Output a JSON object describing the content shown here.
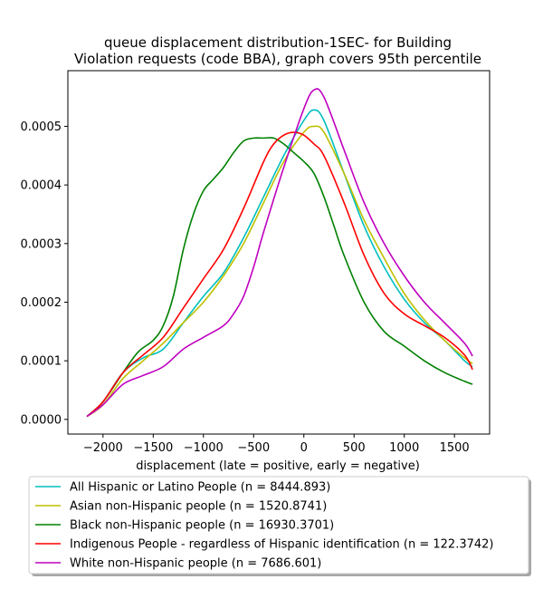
{
  "chart_data": {
    "type": "line",
    "title": [
      "queue displacement distribution-1SEC-  for Building",
      "Violation  requests (code BBA), graph covers 95th percentile"
    ],
    "xlabel": "displacement (late = positive, early = negative)",
    "ylabel": "",
    "xlim": [
      -2350,
      1850
    ],
    "ylim": [
      -2.5e-05,
      0.000595
    ],
    "xticks": [
      -2000,
      -1500,
      -1000,
      -500,
      0,
      500,
      1000,
      1500
    ],
    "xtick_labels": [
      "−2000",
      "−1500",
      "−1000",
      "−500",
      "0",
      "500",
      "1000",
      "1500"
    ],
    "yticks": [
      0.0,
      0.0001,
      0.0002,
      0.0003,
      0.0004,
      0.0005
    ],
    "ytick_labels": [
      "0.0000",
      "0.0001",
      "0.0002",
      "0.0003",
      "0.0004",
      "0.0005"
    ],
    "legend_position": "below plot",
    "series": [
      {
        "name": "All Hispanic or Latino People (n = 8444.893)",
        "color": "#00bfbf",
        "x": [
          -2160,
          -2000,
          -1800,
          -1600,
          -1400,
          -1200,
          -1000,
          -800,
          -600,
          -400,
          -200,
          0,
          100,
          200,
          400,
          600,
          800,
          1000,
          1200,
          1400,
          1600,
          1680
        ],
        "y": [
          5e-06,
          3e-05,
          8e-05,
          0.000105,
          0.00012,
          0.000165,
          0.00021,
          0.00025,
          0.00031,
          0.00038,
          0.00045,
          0.00051,
          0.000528,
          0.00051,
          0.00042,
          0.00033,
          0.00026,
          0.000205,
          0.000165,
          0.000135,
          0.0001,
          9e-05
        ]
      },
      {
        "name": "Asian non-Hispanic people (n = 1520.8741)",
        "color": "#bfbf00",
        "x": [
          -2160,
          -2000,
          -1800,
          -1600,
          -1400,
          -1200,
          -1000,
          -800,
          -600,
          -400,
          -200,
          0,
          100,
          200,
          400,
          600,
          800,
          1000,
          1200,
          1400,
          1600,
          1680
        ],
        "y": [
          5e-06,
          2.5e-05,
          7e-05,
          0.0001,
          0.00013,
          0.000165,
          0.0002,
          0.000245,
          0.0003,
          0.00037,
          0.00044,
          0.00049,
          0.0005,
          0.00049,
          0.00042,
          0.00034,
          0.000275,
          0.000215,
          0.00017,
          0.000135,
          0.000105,
          9.5e-05
        ]
      },
      {
        "name": "Black non-Hispanic people (n = 16930.3701)",
        "color": "#008000",
        "x": [
          -2160,
          -2000,
          -1800,
          -1650,
          -1500,
          -1400,
          -1300,
          -1200,
          -1100,
          -1000,
          -900,
          -800,
          -700,
          -600,
          -500,
          -400,
          -300,
          -200,
          -100,
          0,
          100,
          200,
          300,
          400,
          600,
          800,
          1000,
          1200,
          1400,
          1600,
          1680
        ],
        "y": [
          5e-06,
          3e-05,
          8e-05,
          0.000115,
          0.000135,
          0.00016,
          0.00021,
          0.00029,
          0.00035,
          0.00039,
          0.00041,
          0.00043,
          0.000455,
          0.000475,
          0.00048,
          0.00048,
          0.00048,
          0.00047,
          0.000455,
          0.00044,
          0.00042,
          0.00038,
          0.00033,
          0.00028,
          0.0002,
          0.00015,
          0.000125,
          0.0001,
          8e-05,
          6.5e-05,
          6e-05
        ]
      },
      {
        "name": "Indigenous People - regardless of Hispanic identification (n = 122.3742)",
        "color": "#ff0000",
        "x": [
          -2160,
          -2000,
          -1800,
          -1600,
          -1400,
          -1200,
          -1000,
          -800,
          -600,
          -400,
          -300,
          -200,
          -100,
          0,
          100,
          200,
          400,
          600,
          800,
          1000,
          1200,
          1400,
          1600,
          1680
        ],
        "y": [
          5e-06,
          3e-05,
          8e-05,
          0.00011,
          0.00014,
          0.00019,
          0.00024,
          0.00029,
          0.00036,
          0.00044,
          0.00047,
          0.000485,
          0.00049,
          0.000485,
          0.00047,
          0.00045,
          0.00037,
          0.00028,
          0.000215,
          0.00018,
          0.00016,
          0.00014,
          0.00011,
          8.5e-05
        ]
      },
      {
        "name": "White non-Hispanic people (n = 7686.601)",
        "color": "#bf00bf",
        "x": [
          -2160,
          -2000,
          -1800,
          -1600,
          -1400,
          -1200,
          -1000,
          -800,
          -700,
          -600,
          -500,
          -400,
          -200,
          0,
          100,
          200,
          400,
          600,
          800,
          1000,
          1200,
          1400,
          1600,
          1680
        ],
        "y": [
          5e-06,
          2.5e-05,
          6e-05,
          7.5e-05,
          9e-05,
          0.00012,
          0.00014,
          0.00016,
          0.00018,
          0.00021,
          0.00026,
          0.00032,
          0.00043,
          0.00053,
          0.000562,
          0.00055,
          0.00046,
          0.00037,
          0.0003,
          0.000245,
          0.0002,
          0.000165,
          0.00013,
          0.000108
        ]
      }
    ]
  }
}
